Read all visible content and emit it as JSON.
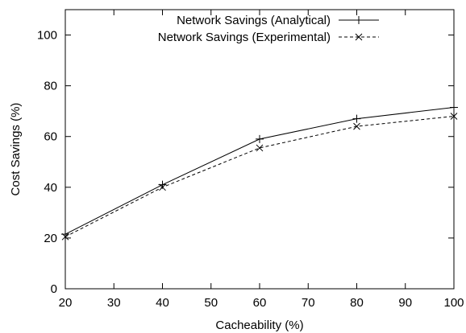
{
  "chart_data": {
    "type": "line",
    "title": "",
    "xlabel": "Cacheability (%)",
    "ylabel": "Cost Savings (%)",
    "xlim": [
      20,
      100
    ],
    "ylim": [
      0,
      110
    ],
    "xticks": [
      20,
      30,
      40,
      50,
      60,
      70,
      80,
      90,
      100
    ],
    "yticks": [
      0,
      20,
      40,
      60,
      80,
      100
    ],
    "grid": false,
    "legend_position": "top-right",
    "x": [
      20,
      40,
      60,
      80,
      100
    ],
    "series": [
      {
        "name": "Network Savings (Analytical)",
        "values": [
          21.5,
          41,
          59,
          67,
          71.5
        ],
        "line_style": "solid",
        "marker": "plus",
        "color": "#000000"
      },
      {
        "name": "Network Savings (Experimental)",
        "values": [
          20.5,
          40,
          55.5,
          64,
          68
        ],
        "line_style": "dashed",
        "marker": "cross",
        "color": "#000000"
      }
    ]
  }
}
